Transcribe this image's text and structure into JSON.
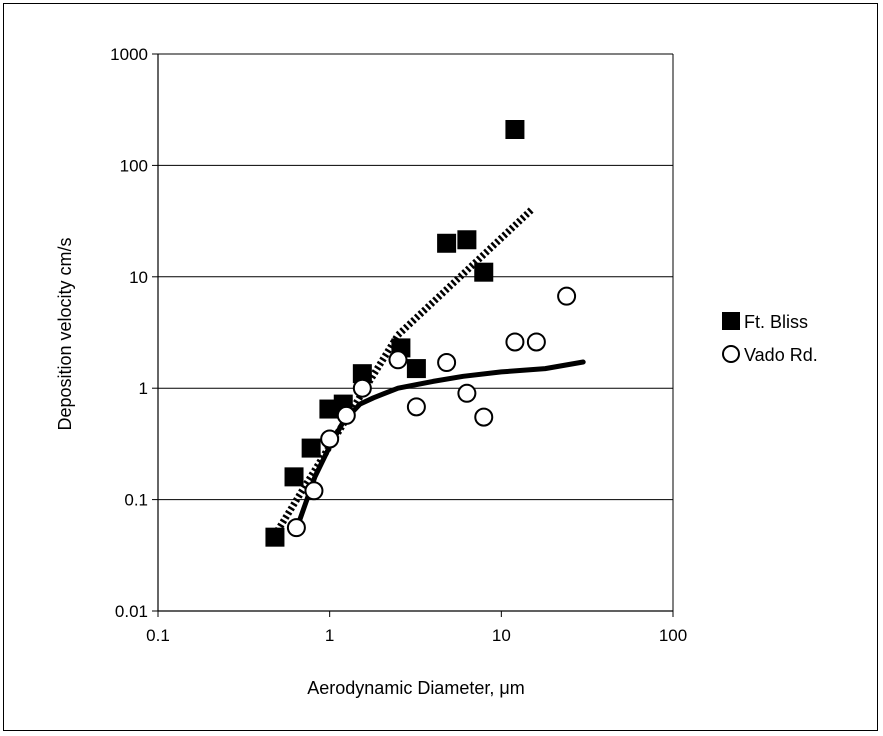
{
  "chart_data": {
    "type": "scatter",
    "xlabel": "Aerodynamic Diameter, μm",
    "ylabel": "Deposition velocity cm/s",
    "x_scale": "log",
    "y_scale": "log",
    "xlim": [
      0.1,
      100
    ],
    "ylim": [
      0.01,
      1000
    ],
    "x_ticks": [
      "0.1",
      "1",
      "10",
      "100"
    ],
    "y_ticks": [
      "0.01",
      "0.1",
      "1",
      "10",
      "100",
      "1000"
    ],
    "grid": "horizontal major",
    "legend_position": "right",
    "series": [
      {
        "name": "Ft. Bliss",
        "marker": "filled-square",
        "color": "#000000",
        "points": [
          [
            0.48,
            0.046
          ],
          [
            0.62,
            0.16
          ],
          [
            0.78,
            0.29
          ],
          [
            0.99,
            0.65
          ],
          [
            1.2,
            0.72
          ],
          [
            1.55,
            1.35
          ],
          [
            2.6,
            2.3
          ],
          [
            3.2,
            1.5
          ],
          [
            4.8,
            20
          ],
          [
            6.3,
            21.5
          ],
          [
            7.9,
            11
          ],
          [
            12,
            210
          ]
        ]
      },
      {
        "name": "Vado Rd.",
        "marker": "open-circle",
        "color": "#000000",
        "points": [
          [
            0.64,
            0.056
          ],
          [
            0.81,
            0.12
          ],
          [
            1.0,
            0.35
          ],
          [
            1.25,
            0.57
          ],
          [
            1.55,
            1.0
          ],
          [
            2.5,
            1.8
          ],
          [
            3.2,
            0.68
          ],
          [
            4.8,
            1.7
          ],
          [
            6.3,
            0.9
          ],
          [
            7.9,
            0.55
          ],
          [
            12,
            2.6
          ],
          [
            16,
            2.6
          ],
          [
            24,
            6.7
          ]
        ]
      }
    ],
    "fit_lines": [
      {
        "style": "dotted-thick",
        "color": "#000000",
        "points": [
          [
            0.48,
            0.048
          ],
          [
            2.5,
            3
          ],
          [
            15,
            40
          ]
        ]
      },
      {
        "style": "solid-thick",
        "color": "#000000",
        "points": [
          [
            0.65,
            0.058
          ],
          [
            0.82,
            0.16
          ],
          [
            1.0,
            0.3
          ],
          [
            1.2,
            0.5
          ],
          [
            1.5,
            0.72
          ],
          [
            1.8,
            0.82
          ],
          [
            2.5,
            1.0
          ],
          [
            4,
            1.15
          ],
          [
            6,
            1.28
          ],
          [
            10,
            1.4
          ],
          [
            18,
            1.5
          ],
          [
            30,
            1.72
          ]
        ]
      }
    ]
  }
}
